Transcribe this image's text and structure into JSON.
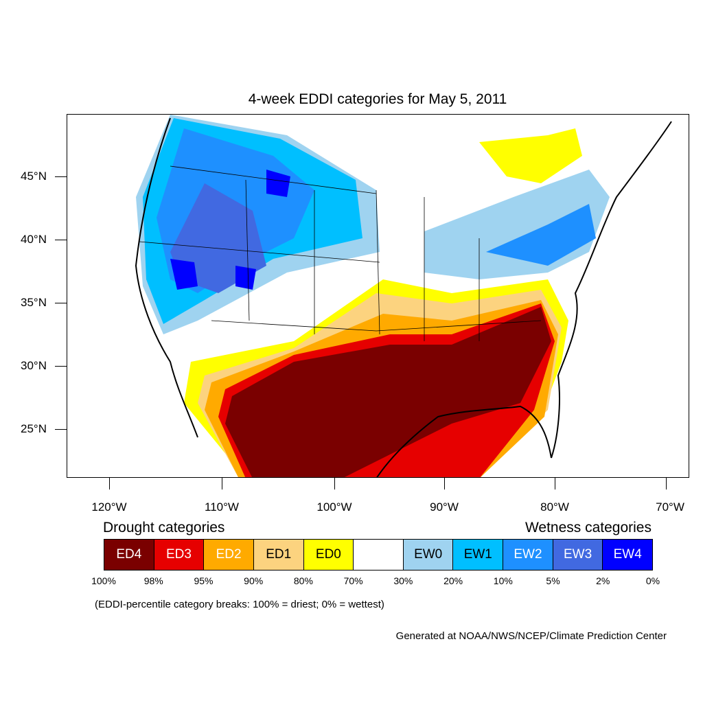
{
  "title": "4-week EDDI categories for May 5, 2011",
  "axes": {
    "lat_labels": [
      "45°N",
      "40°N",
      "35°N",
      "30°N",
      "25°N"
    ],
    "lon_labels": [
      "120°W",
      "110°W",
      "100°W",
      "90°W",
      "80°W",
      "70°W"
    ]
  },
  "legend": {
    "drought_title": "Drought categories",
    "wetness_title": "Wetness categories",
    "categories": [
      {
        "label": "ED4",
        "color": "#7a0000",
        "text_color": "#ffffff"
      },
      {
        "label": "ED3",
        "color": "#e60000",
        "text_color": "#ffffff"
      },
      {
        "label": "ED2",
        "color": "#ffaa00",
        "text_color": "#ffffff"
      },
      {
        "label": "ED1",
        "color": "#fcd37f",
        "text_color": "#000000"
      },
      {
        "label": "ED0",
        "color": "#ffff00",
        "text_color": "#000000"
      },
      {
        "label": "",
        "color": "#ffffff",
        "text_color": "#000000"
      },
      {
        "label": "EW0",
        "color": "#9fd3f0",
        "text_color": "#000000"
      },
      {
        "label": "EW1",
        "color": "#00bfff",
        "text_color": "#000000"
      },
      {
        "label": "EW2",
        "color": "#1e90ff",
        "text_color": "#ffffff"
      },
      {
        "label": "EW3",
        "color": "#4169e1",
        "text_color": "#ffffff"
      },
      {
        "label": "EW4",
        "color": "#0000ff",
        "text_color": "#ffffff"
      }
    ],
    "breaks": [
      "100%",
      "98%",
      "95%",
      "90%",
      "80%",
      "70%",
      "30%",
      "20%",
      "10%",
      "5%",
      "2%",
      "0%"
    ]
  },
  "note": "(EDDI-percentile category breaks: 100% = driest; 0% = wettest)",
  "credit": "Generated at NOAA/NWS/NCEP/Climate Prediction Center"
}
